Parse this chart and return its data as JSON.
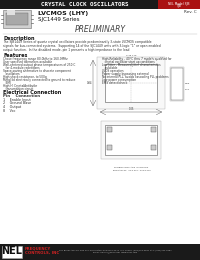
{
  "header_bar_color": "#1a1a1a",
  "header_text": "CRYSTAL CLOCK OSCILLATORS",
  "header_text_color": "#ffffff",
  "header_right_bg": "#aa1111",
  "rev_text": "Rev. C",
  "title_line1": "LVCMOS (LHY)",
  "title_line2": "SJC1449 Series",
  "preliminary": "PRELIMINARY",
  "desc_title": "Description",
  "feat_title": "Features",
  "pin_title": "Electrical Connection",
  "pin_header": "Pin    Connection",
  "pins": [
    "1    Enable Input",
    "2    Ground Base",
    "4    Output",
    "8    Vcc"
  ],
  "footer_bg": "#1a1a1a",
  "footer_logo_text": "NEL",
  "footer_company_color": "#cc2222",
  "main_bg": "#ffffff"
}
